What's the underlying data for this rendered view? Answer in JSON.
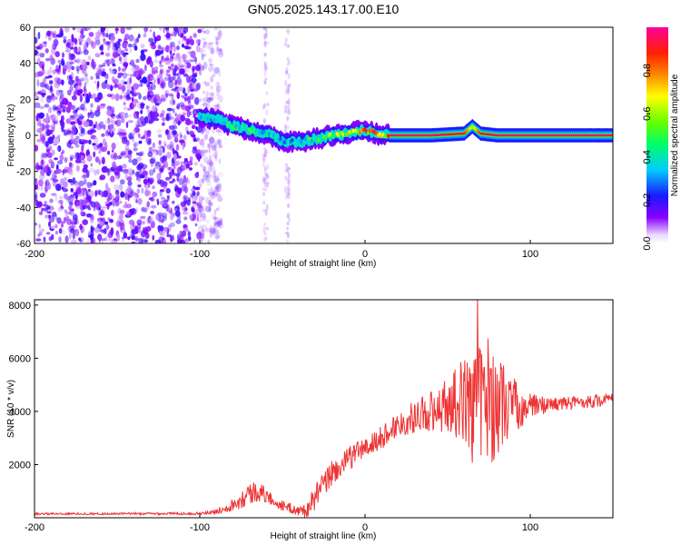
{
  "figure": {
    "title": "GN05.2025.143.17.00.E10"
  },
  "chart_data": [
    {
      "type": "heatmap",
      "xlabel": "Height of straight line (km)",
      "ylabel": "Frequency (Hz)",
      "xlim": [
        -200,
        150
      ],
      "ylim": [
        -60,
        60
      ],
      "xticks": [
        -200,
        -100,
        0,
        100
      ],
      "xtick_labels": [
        "-200",
        "-100",
        "0",
        "100"
      ],
      "yticks": [
        -60,
        -40,
        -20,
        0,
        20,
        40,
        60
      ],
      "ytick_labels": [
        "-60",
        "-40",
        "-20",
        "0",
        "20",
        "40",
        "60"
      ],
      "colorbar": {
        "label": "Normalized spectral amplitude",
        "range": [
          0,
          1
        ],
        "ticks": [
          0.0,
          0.2,
          0.4,
          0.6,
          0.8
        ],
        "tick_labels": [
          "0.0",
          "0.2",
          "0.4",
          "0.6",
          "0.8"
        ],
        "colormap": "rainbow (white-violet-blue-cyan-green-yellow-red-magenta)"
      },
      "ridge": {
        "x": [
          -100,
          -90,
          -80,
          -70,
          -60,
          -50,
          -40,
          -30,
          -20,
          -10,
          0,
          10,
          20,
          40,
          60,
          65,
          70,
          80,
          100,
          150
        ],
        "freq": [
          10,
          9,
          5,
          3,
          1,
          -3,
          -4,
          -2,
          0,
          1,
          3,
          0,
          0,
          0,
          1,
          5,
          1,
          0,
          0,
          0
        ],
        "amplitude": [
          0.45,
          0.5,
          0.55,
          0.55,
          0.5,
          0.45,
          0.4,
          0.6,
          0.7,
          0.8,
          0.9,
          0.95,
          0.95,
          0.95,
          0.9,
          0.6,
          0.9,
          0.95,
          0.95,
          0.95
        ]
      },
      "noise_region": {
        "x_range": [
          -200,
          -95
        ],
        "freq_range": [
          -60,
          60
        ],
        "amplitude": [
          0.05,
          0.2
        ]
      },
      "vertical_streaks_x": [
        -60,
        -47
      ]
    },
    {
      "type": "line",
      "xlabel": "Height of straight line (km)",
      "ylabel": "SNR (10 * v/v)",
      "xlim": [
        -200,
        150
      ],
      "ylim": [
        0,
        8200
      ],
      "xticks": [
        -200,
        -100,
        0,
        100
      ],
      "xtick_labels": [
        "-200",
        "-100",
        "0",
        "100"
      ],
      "yticks": [
        2000,
        4000,
        6000,
        8000
      ],
      "ytick_labels": [
        "2000",
        "4000",
        "6000",
        "8000"
      ],
      "color": "#ee3333",
      "series": [
        {
          "x": [
            -200,
            -150,
            -100,
            -92,
            -85,
            -80,
            -75,
            -70,
            -65,
            -60,
            -55,
            -50,
            -45,
            -40,
            -35,
            -30,
            -25,
            -20,
            -15,
            -10,
            -5,
            0,
            5,
            10,
            15,
            20,
            25,
            30,
            35,
            40,
            45,
            50,
            55,
            60,
            65,
            70,
            75,
            80,
            90,
            100,
            110,
            120,
            130,
            140,
            150
          ],
          "values": [
            150,
            150,
            160,
            200,
            350,
            500,
            700,
            900,
            1000,
            850,
            600,
            450,
            350,
            250,
            300,
            800,
            1200,
            1700,
            1900,
            2200,
            2500,
            2600,
            2800,
            3000,
            3300,
            3500,
            3650,
            3800,
            3950,
            4050,
            4150,
            4250,
            4350,
            4400,
            4450,
            4450,
            4400,
            4300,
            4200,
            4200,
            4250,
            4300,
            4350,
            4400,
            4450
          ],
          "noise_amplitude": [
            40,
            40,
            50,
            80,
            150,
            250,
            350,
            450,
            400,
            300,
            200,
            200,
            200,
            200,
            300,
            500,
            500,
            500,
            450,
            450,
            450,
            400,
            450,
            450,
            450,
            500,
            550,
            600,
            700,
            800,
            900,
            1100,
            1400,
            1600,
            1900,
            2300,
            2600,
            1900,
            1100,
            500,
            300,
            250,
            250,
            250,
            250
          ]
        }
      ]
    }
  ]
}
